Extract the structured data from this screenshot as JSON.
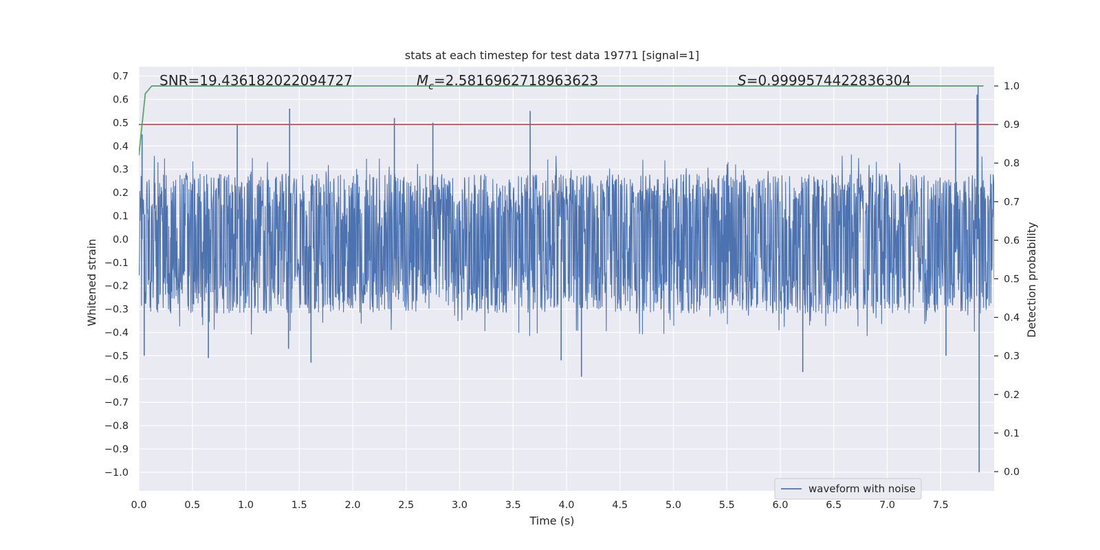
{
  "chart_data": {
    "type": "line",
    "title": "stats at each timestep for test data 19771 [signal=1]",
    "xlabel": "Time (s)",
    "ylabel": "Whitened strain",
    "y2label": "Detection probability",
    "xlim": [
      0.0,
      8.0
    ],
    "ylim": [
      -1.08,
      0.74
    ],
    "y2lim": [
      -0.05,
      1.05
    ],
    "xticks": [
      "0.0",
      "0.5",
      "1.0",
      "1.5",
      "2.0",
      "2.5",
      "3.0",
      "3.5",
      "4.0",
      "4.5",
      "5.0",
      "5.5",
      "6.0",
      "6.5",
      "7.0",
      "7.5"
    ],
    "xtick_values": [
      0.0,
      0.5,
      1.0,
      1.5,
      2.0,
      2.5,
      3.0,
      3.5,
      4.0,
      4.5,
      5.0,
      5.5,
      6.0,
      6.5,
      7.0,
      7.5
    ],
    "yticks": [
      "0.7",
      "0.6",
      "0.5",
      "0.4",
      "0.3",
      "0.2",
      "0.1",
      "0.0",
      "−0.1",
      "−0.2",
      "−0.3",
      "−0.4",
      "−0.5",
      "−0.6",
      "−0.7",
      "−0.8",
      "−0.9",
      "−1.0"
    ],
    "ytick_values": [
      0.7,
      0.6,
      0.5,
      0.4,
      0.3,
      0.2,
      0.1,
      0.0,
      -0.1,
      -0.2,
      -0.3,
      -0.4,
      -0.5,
      -0.6,
      -0.7,
      -0.8,
      -0.9,
      -1.0
    ],
    "y2ticks": [
      "1.0",
      "0.9",
      "0.8",
      "0.7",
      "0.6",
      "0.5",
      "0.4",
      "0.3",
      "0.2",
      "0.1",
      "0.0"
    ],
    "y2tick_values": [
      1.0,
      0.9,
      0.8,
      0.7,
      0.6,
      0.5,
      0.4,
      0.3,
      0.2,
      0.1,
      0.0
    ],
    "annotations": {
      "snr": "SNR=19.436182022094727",
      "mc_symbol": "M",
      "mc_sub": "c",
      "mc_value": "=2.5816962718963623",
      "s_symbol": "S",
      "s_value": "=0.9999574422836304"
    },
    "legend": {
      "label": "waveform with noise",
      "placement": "lower-right"
    },
    "grid": true,
    "series": [
      {
        "name": "waveform with noise",
        "color": "#4c72b0",
        "kind": "noise",
        "duration": 8.0,
        "envelope_pos": 0.28,
        "envelope_neg": -0.32,
        "peaks": [
          {
            "t": 0.03,
            "v": 0.45
          },
          {
            "t": 0.05,
            "v": -0.5
          },
          {
            "t": 0.65,
            "v": -0.51
          },
          {
            "t": 0.92,
            "v": 0.49
          },
          {
            "t": 1.41,
            "v": 0.56
          },
          {
            "t": 1.4,
            "v": -0.47
          },
          {
            "t": 1.61,
            "v": -0.53
          },
          {
            "t": 2.39,
            "v": 0.52
          },
          {
            "t": 2.75,
            "v": 0.5
          },
          {
            "t": 3.66,
            "v": 0.55
          },
          {
            "t": 3.95,
            "v": -0.52
          },
          {
            "t": 4.14,
            "v": -0.59
          },
          {
            "t": 6.21,
            "v": -0.57
          },
          {
            "t": 7.64,
            "v": 0.5
          },
          {
            "t": 7.85,
            "v": 0.66
          },
          {
            "t": 7.86,
            "v": -1.0
          },
          {
            "t": 7.84,
            "v": 0.62
          },
          {
            "t": 7.55,
            "v": -0.5
          }
        ]
      },
      {
        "name": "",
        "color": "#c44e52",
        "axis": "right",
        "x": [
          0.0,
          8.0
        ],
        "y": [
          0.9,
          0.9
        ]
      },
      {
        "name": "",
        "color": "#55a868",
        "axis": "right",
        "x": [
          0.0,
          0.06,
          0.12,
          7.9
        ],
        "y": [
          0.82,
          0.98,
          1.0,
          1.0
        ]
      }
    ]
  }
}
